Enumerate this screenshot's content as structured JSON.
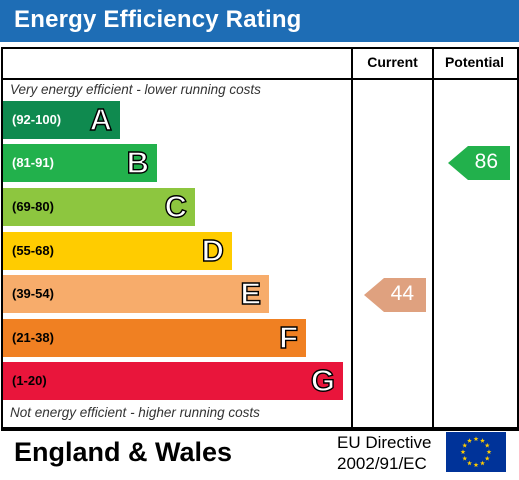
{
  "header": {
    "title": "Energy Efficiency Rating"
  },
  "columns": {
    "current": "Current",
    "potential": "Potential"
  },
  "top_note": "Very energy efficient - lower running costs",
  "bottom_note": "Not energy efficient - higher running costs",
  "bands": [
    {
      "range": "(92-100)",
      "letter": "A",
      "color": "#0f8a4f",
      "text_color": "#ffffff"
    },
    {
      "range": "(81-91)",
      "letter": "B",
      "color": "#22b14c",
      "text_color": "#ffffff"
    },
    {
      "range": "(69-80)",
      "letter": "C",
      "color": "#8dc63f",
      "text_color": "#000000"
    },
    {
      "range": "(55-68)",
      "letter": "D",
      "color": "#ffcc00",
      "text_color": "#000000"
    },
    {
      "range": "(39-54)",
      "letter": "E",
      "color": "#f7ac6b",
      "text_color": "#000000"
    },
    {
      "range": "(21-38)",
      "letter": "F",
      "color": "#f08022",
      "text_color": "#000000"
    },
    {
      "range": "(1-20)",
      "letter": "G",
      "color": "#e9153b",
      "text_color": "#000000"
    }
  ],
  "current": {
    "value": "44",
    "band": "E",
    "color": "#dfa17f"
  },
  "potential": {
    "value": "86",
    "band": "B",
    "color": "#22b14c"
  },
  "footer": {
    "country": "England & Wales",
    "directive_line1": "EU Directive",
    "directive_line2": "2002/91/EC",
    "flag_icon": "eu-flag-icon",
    "flag_color": "#003399",
    "star_color": "#ffcc00"
  }
}
